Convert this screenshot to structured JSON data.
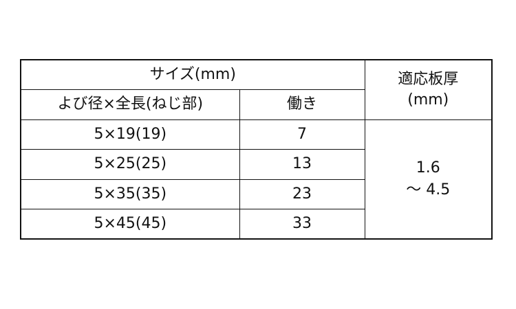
{
  "header": {
    "size_group": "サイズ(mm)",
    "diameter_length": "よび径×全長(ねじ部)",
    "effective": "働き",
    "thickness": "適応板厚",
    "thickness_unit": "(mm)"
  },
  "rows": [
    {
      "size": "5×19(19)",
      "effective": "7"
    },
    {
      "size": "5×25(25)",
      "effective": "13"
    },
    {
      "size": "5×35(35)",
      "effective": "23"
    },
    {
      "size": "5×45(45)",
      "effective": "33"
    }
  ],
  "thickness_range": {
    "min": "1.6",
    "max": "～ 4.5"
  }
}
